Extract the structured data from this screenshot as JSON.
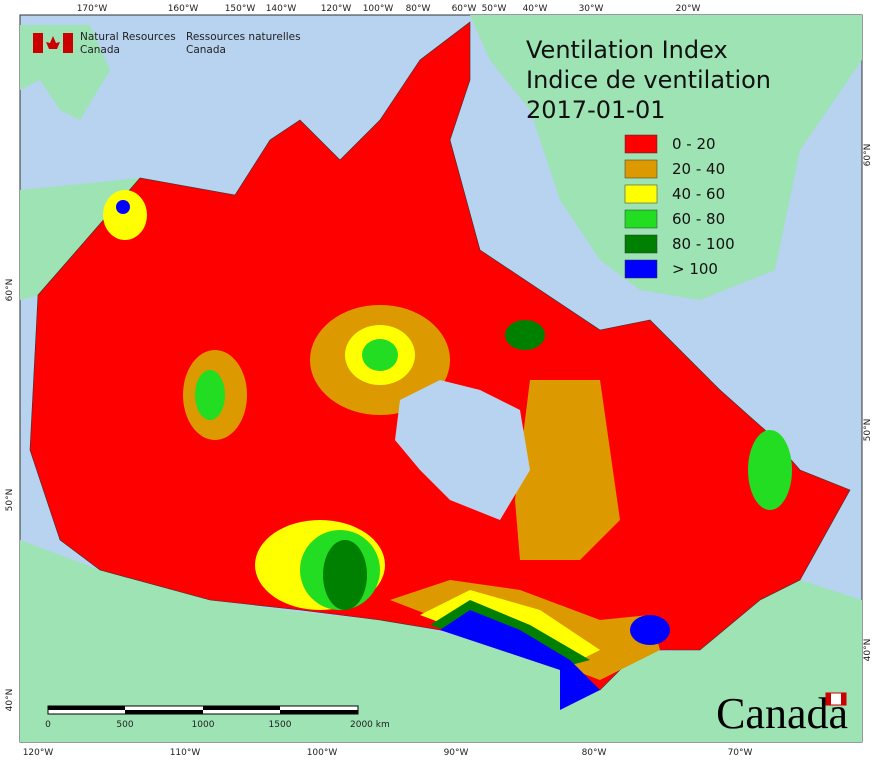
{
  "header": {
    "agency_en": [
      "Natural Resources",
      "Canada"
    ],
    "agency_fr": [
      "Ressources naturelles",
      "Canada"
    ]
  },
  "title": {
    "en": "Ventilation Index",
    "fr": "Indice de ventilation",
    "date": "2017-01-01"
  },
  "legend": [
    {
      "label": "0 - 20",
      "color": "#ff0000"
    },
    {
      "label": "20 - 40",
      "color": "#dd9a00"
    },
    {
      "label": "40 - 60",
      "color": "#ffff00"
    },
    {
      "label": "60 - 80",
      "color": "#22dd22"
    },
    {
      "label": "80 - 100",
      "color": "#008000"
    },
    {
      "label": "> 100",
      "color": "#0000ff"
    }
  ],
  "graticule": {
    "top": [
      "170°W",
      "160°W",
      "150°W",
      "140°W",
      "120°W",
      "100°W",
      "80°W",
      "60°W",
      "50°W",
      "40°W",
      "30°W",
      "20°W"
    ],
    "bottom": [
      "120°W",
      "110°W",
      "100°W",
      "90°W",
      "80°W",
      "70°W"
    ],
    "left": [
      "60°N",
      "50°N",
      "40°N"
    ],
    "right": [
      "60°N",
      "50°N",
      "40°N"
    ]
  },
  "scale_bar": [
    "0",
    "500",
    "1000",
    "1500",
    "2000 km"
  ],
  "wordmark": "Canada"
}
